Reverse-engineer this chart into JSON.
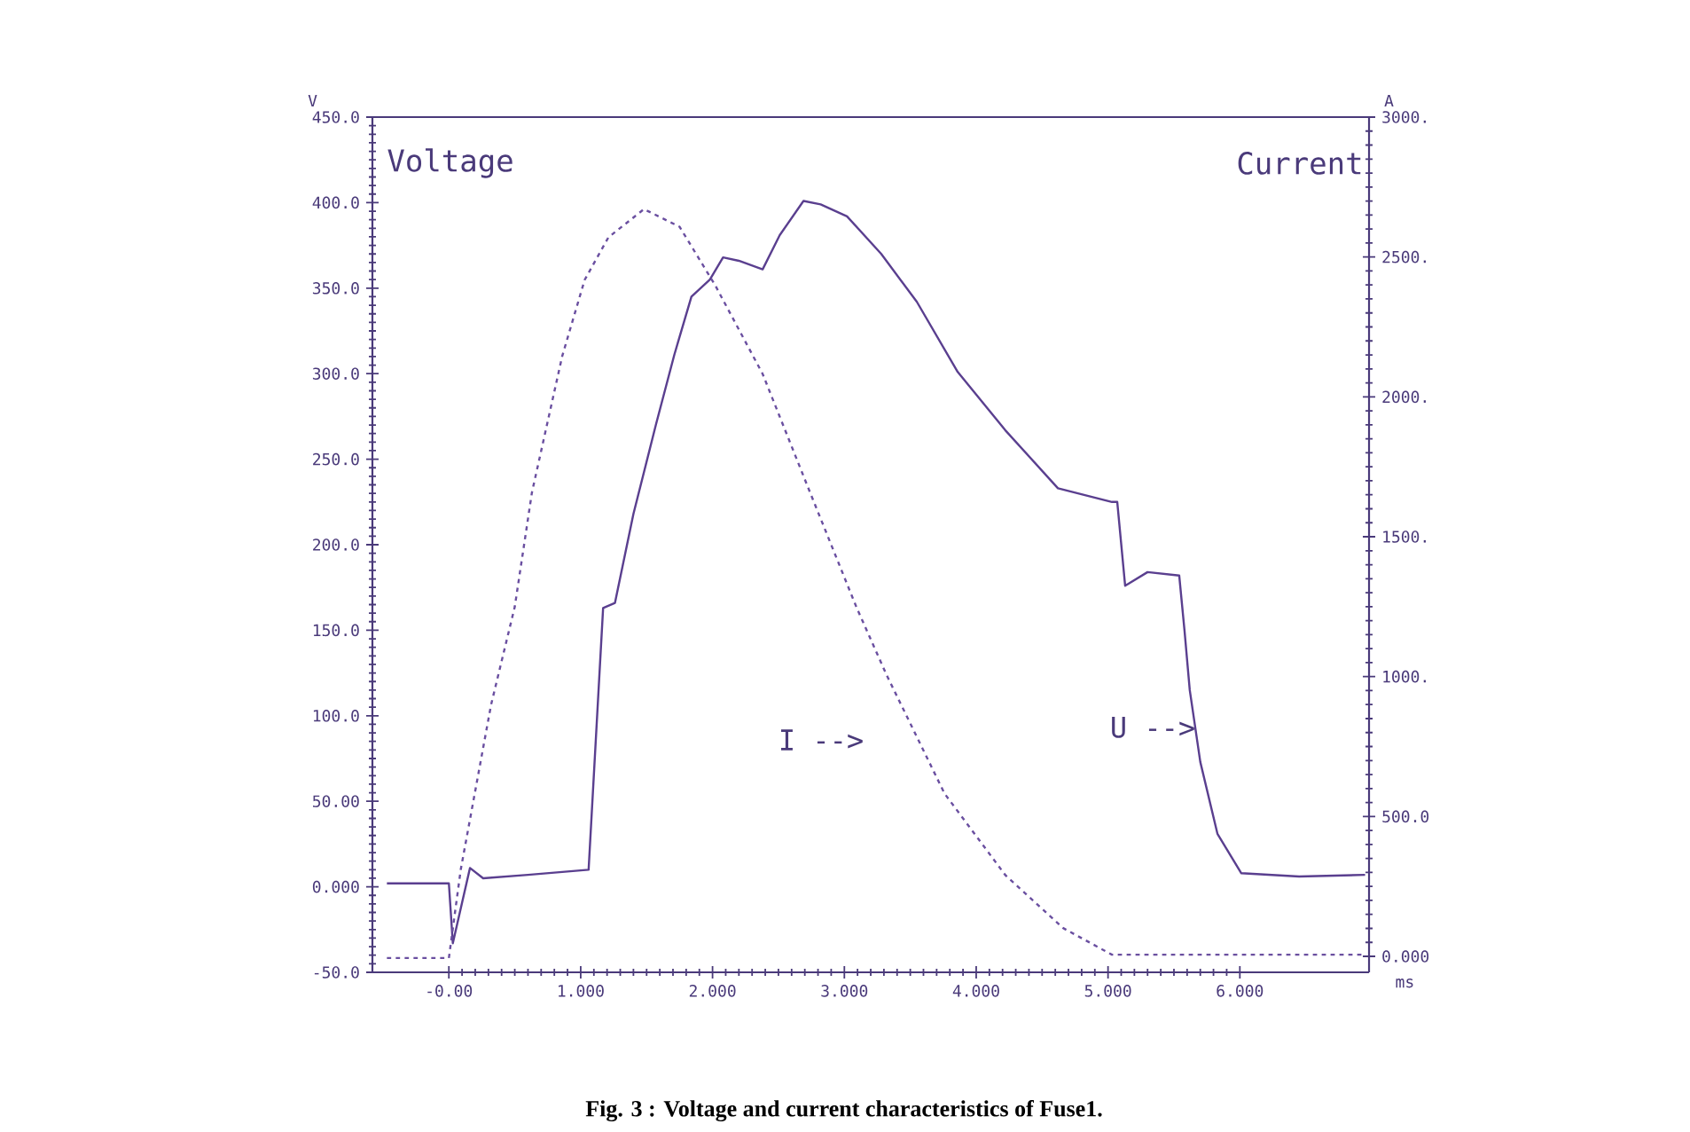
{
  "chart_data": {
    "type": "line",
    "xlabel": "ms",
    "ylabel": "V",
    "y2label": "A",
    "xlim": [
      -0.58,
      6.98
    ],
    "ylim": [
      -50,
      450
    ],
    "y2lim": [
      -57,
      3000
    ],
    "xticks": [
      {
        "value": 0,
        "label": "-0.00"
      },
      {
        "value": 1,
        "label": "1.000"
      },
      {
        "value": 2,
        "label": "2.000"
      },
      {
        "value": 3,
        "label": "3.000"
      },
      {
        "value": 4,
        "label": "4.000"
      },
      {
        "value": 5,
        "label": "5.000"
      },
      {
        "value": 6,
        "label": "6.000"
      }
    ],
    "yticks": [
      {
        "value": -50,
        "label": "-50.0"
      },
      {
        "value": 0,
        "label": "0.000"
      },
      {
        "value": 50,
        "label": "50.00"
      },
      {
        "value": 100,
        "label": "100.0"
      },
      {
        "value": 150,
        "label": "150.0"
      },
      {
        "value": 200,
        "label": "200.0"
      },
      {
        "value": 250,
        "label": "250.0"
      },
      {
        "value": 300,
        "label": "300.0"
      },
      {
        "value": 350,
        "label": "350.0"
      },
      {
        "value": 400,
        "label": "400.0"
      },
      {
        "value": 450,
        "label": "450.0"
      }
    ],
    "y2ticks": [
      {
        "value": 0,
        "label": "0.000"
      },
      {
        "value": 500,
        "label": "500.0"
      },
      {
        "value": 1000,
        "label": "1000."
      },
      {
        "value": 1500,
        "label": "1500."
      },
      {
        "value": 2000,
        "label": "2000."
      },
      {
        "value": 2500,
        "label": "2500."
      },
      {
        "value": 3000,
        "label": "3000."
      }
    ],
    "marker": "none",
    "grid": false,
    "series": [
      {
        "color": "#5a3f8f",
        "line_style": "solid",
        "x": [
          -0.47,
          0.0,
          0.03,
          0.16,
          0.26,
          0.6,
          1.06,
          1.17,
          1.26,
          1.4,
          1.57,
          1.71,
          1.84,
          1.98,
          2.08,
          2.2,
          2.38,
          2.51,
          2.69,
          2.82,
          3.02,
          3.28,
          3.55,
          3.86,
          4.22,
          4.62,
          5.03,
          5.07,
          5.13,
          5.3,
          5.54,
          5.58,
          5.62,
          5.7,
          5.83,
          6.01,
          6.45,
          6.95
        ],
        "values": [
          2,
          2,
          -33,
          11,
          5,
          7,
          10,
          163,
          166,
          218,
          270,
          311,
          345,
          355,
          368,
          366,
          361,
          381,
          401,
          399,
          392,
          370,
          342,
          301,
          267,
          233,
          225,
          225,
          176,
          184,
          182,
          150,
          115,
          73,
          31,
          8,
          6,
          7
        ]
      },
      {
        "color": "#6a4fa0",
        "line_style": "dashed",
        "axis": "y2",
        "x": [
          -0.47,
          0.0,
          0.09,
          0.32,
          0.5,
          0.63,
          0.86,
          1.03,
          1.21,
          1.48,
          1.75,
          2.02,
          2.38,
          2.74,
          3.09,
          3.32,
          3.76,
          4.22,
          4.66,
          5.03,
          6.95
        ],
        "values": [
          -6,
          -6,
          310,
          899,
          1250,
          1658,
          2146,
          2418,
          2570,
          2671,
          2608,
          2399,
          2082,
          1658,
          1250,
          1006,
          582,
          291,
          101,
          6,
          6
        ]
      }
    ],
    "annotations": [
      "Voltage",
      "Current",
      "I -->",
      "U -->",
      "Fig. 3 : Voltage and current characteristics of Fuse1."
    ]
  }
}
